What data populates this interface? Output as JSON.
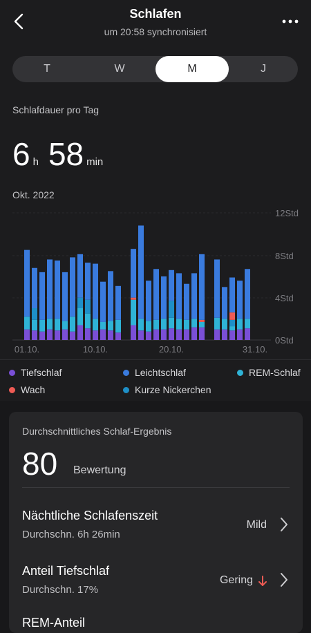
{
  "header": {
    "title": "Schlafen",
    "subtitle": "um 20:58 synchronisiert"
  },
  "tabs": [
    {
      "label": "T",
      "active": false
    },
    {
      "label": "W",
      "active": false
    },
    {
      "label": "M",
      "active": true
    },
    {
      "label": "J",
      "active": false
    }
  ],
  "duration": {
    "label": "Schlafdauer pro Tag",
    "hours": "6",
    "hours_unit": "h",
    "minutes": "58",
    "minutes_unit": "min"
  },
  "period": "Okt. 2022",
  "chart_data": {
    "type": "bar",
    "stacked": true,
    "y_ticks": [
      "12Std",
      "8Std",
      "4Std",
      "0Std"
    ],
    "ylim": [
      0,
      12
    ],
    "x_ticks": [
      {
        "label": "01.10.",
        "day": 1
      },
      {
        "label": "10.10.",
        "day": 10
      },
      {
        "label": "20.10.",
        "day": 20
      },
      {
        "label": "31.10.",
        "day": 31
      }
    ],
    "colors": {
      "deep": "#7a4fd6",
      "light": "#3a7bde",
      "rem": "#2fb3d6",
      "wach": "#ef5b54",
      "nap": "#1e8fc7"
    },
    "days": [
      {
        "day": 1,
        "deep": 1.0,
        "rem": 1.2,
        "light": 6.3,
        "nap": 0,
        "wach": 0
      },
      {
        "day": 2,
        "deep": 0.9,
        "rem": 1.0,
        "light": 3.8,
        "nap": 1.1,
        "wach": 0
      },
      {
        "day": 3,
        "deep": 0.8,
        "rem": 1.1,
        "light": 4.5,
        "nap": 0,
        "wach": 0
      },
      {
        "day": 4,
        "deep": 1.0,
        "rem": 1.0,
        "light": 5.6,
        "nap": 0,
        "wach": 0
      },
      {
        "day": 5,
        "deep": 0.9,
        "rem": 1.1,
        "light": 5.5,
        "nap": 0,
        "wach": 0
      },
      {
        "day": 6,
        "deep": 1.0,
        "rem": 0.8,
        "light": 4.6,
        "nap": 0,
        "wach": 0
      },
      {
        "day": 7,
        "deep": 0.8,
        "rem": 1.4,
        "light": 5.6,
        "nap": 0,
        "wach": 0
      },
      {
        "day": 8,
        "deep": 1.4,
        "rem": 1.6,
        "light": 4.1,
        "nap": 1.0,
        "wach": 0
      },
      {
        "day": 9,
        "deep": 1.1,
        "rem": 1.4,
        "light": 3.5,
        "nap": 1.3,
        "wach": 0
      },
      {
        "day": 10,
        "deep": 0.9,
        "rem": 1.1,
        "light": 5.2,
        "nap": 0,
        "wach": 0
      },
      {
        "day": 11,
        "deep": 1.0,
        "rem": 0.7,
        "light": 3.8,
        "nap": 0,
        "wach": 0
      },
      {
        "day": 12,
        "deep": 0.9,
        "rem": 0.9,
        "light": 4.7,
        "nap": 0,
        "wach": 0
      },
      {
        "day": 13,
        "deep": 0.7,
        "rem": 1.2,
        "light": 3.2,
        "nap": 0,
        "wach": 0
      },
      {
        "day": 14,
        "deep": 0,
        "rem": 0,
        "light": 0,
        "nap": 0,
        "wach": 0
      },
      {
        "day": 15,
        "deep": 1.4,
        "rem": 2.4,
        "light": 4.6,
        "nap": 0,
        "wach": 0.2
      },
      {
        "day": 16,
        "deep": 0.9,
        "rem": 1.1,
        "light": 8.8,
        "nap": 0,
        "wach": 0
      },
      {
        "day": 17,
        "deep": 0.8,
        "rem": 1.0,
        "light": 3.8,
        "nap": 0,
        "wach": 0
      },
      {
        "day": 18,
        "deep": 1.0,
        "rem": 0.9,
        "light": 4.8,
        "nap": 0,
        "wach": 0
      },
      {
        "day": 19,
        "deep": 1.0,
        "rem": 1.0,
        "light": 4.0,
        "nap": 0,
        "wach": 0
      },
      {
        "day": 20,
        "deep": 1.1,
        "rem": 1.0,
        "light": 2.9,
        "nap": 1.6,
        "wach": 0
      },
      {
        "day": 21,
        "deep": 1.0,
        "rem": 1.0,
        "light": 4.3,
        "nap": 0,
        "wach": 0
      },
      {
        "day": 22,
        "deep": 1.0,
        "rem": 0.9,
        "light": 3.4,
        "nap": 0,
        "wach": 0
      },
      {
        "day": 23,
        "deep": 1.2,
        "rem": 0.8,
        "light": 4.3,
        "nap": 0,
        "wach": 0
      },
      {
        "day": 24,
        "deep": 1.2,
        "rem": 0.5,
        "light": 6.2,
        "nap": 0,
        "wach": 0.2
      },
      {
        "day": 25,
        "deep": 0,
        "rem": 0,
        "light": 0,
        "nap": 0,
        "wach": 0
      },
      {
        "day": 26,
        "deep": 1.0,
        "rem": 1.1,
        "light": 5.5,
        "nap": 0,
        "wach": 0
      },
      {
        "day": 27,
        "deep": 1.0,
        "rem": 1.0,
        "light": 3.0,
        "nap": 0,
        "wach": 0
      },
      {
        "day": 28,
        "deep": 0.9,
        "rem": 0.4,
        "light": 3.3,
        "nap": 0.6,
        "wach": 0.7
      },
      {
        "day": 29,
        "deep": 1.0,
        "rem": 1.0,
        "light": 3.6,
        "nap": 0,
        "wach": 0
      },
      {
        "day": 30,
        "deep": 1.1,
        "rem": 0.9,
        "light": 4.7,
        "nap": 0,
        "wach": 0
      },
      {
        "day": 31,
        "deep": 0,
        "rem": 0,
        "light": 0,
        "nap": 0,
        "wach": 0
      }
    ]
  },
  "legend": [
    {
      "label": "Tiefschlaf",
      "color": "#7a4fd6"
    },
    {
      "label": "Leichtschlaf",
      "color": "#3a7bde"
    },
    {
      "label": "REM-Schlaf",
      "color": "#2fb3d6"
    },
    {
      "label": "Wach",
      "color": "#ef5b54"
    },
    {
      "label": "Kurze Nickerchen",
      "color": "#1e8fc7"
    }
  ],
  "summary": {
    "title": "Durchschnittliches Schlaf-Ergebnis",
    "score": "80",
    "score_label": "Bewertung",
    "rows": [
      {
        "title": "Nächtliche Schlafenszeit",
        "sub": "Durchschn. 6h 26min",
        "value": "Mild",
        "trend": ""
      },
      {
        "title": "Anteil Tiefschlaf",
        "sub": "Durchschn. 17%",
        "value": "Gering",
        "trend": "down"
      },
      {
        "title": "REM-Anteil",
        "sub": "",
        "value": "",
        "trend": ""
      }
    ]
  }
}
